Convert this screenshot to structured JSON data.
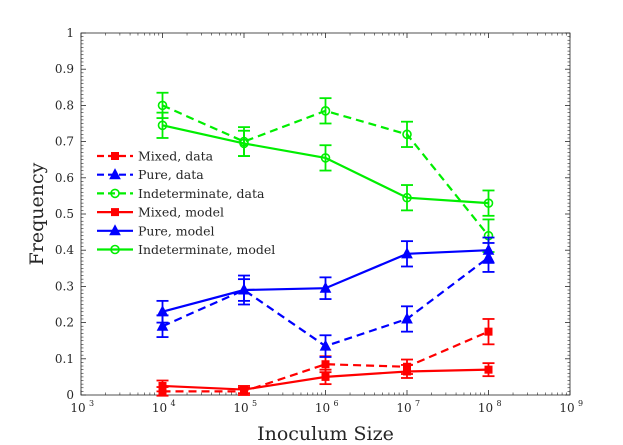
{
  "chart_data": {
    "type": "line",
    "xlabel": "Inoculum Size",
    "ylabel": "Frequency",
    "x_scale": "log10",
    "xlim_exponent": [
      3,
      9
    ],
    "xtick_base": "10",
    "xtick_exponents": [
      "3",
      "4",
      "5",
      "6",
      "7",
      "8",
      "9"
    ],
    "ylim": [
      0,
      1
    ],
    "yticks": [
      "0",
      "0.1",
      "0.2",
      "0.3",
      "0.4",
      "0.5",
      "0.6",
      "0.7",
      "0.8",
      "0.9",
      "1"
    ],
    "x_exponents": [
      4,
      5,
      6,
      7,
      8
    ],
    "legend_position": "left",
    "series": [
      {
        "name": "Mixed, data",
        "color": "#ff0000",
        "style": "dashed",
        "marker": "square",
        "values": [
          0.01,
          0.01,
          0.085,
          0.078,
          0.175
        ],
        "err": [
          0.012,
          0.01,
          0.022,
          0.02,
          0.035
        ]
      },
      {
        "name": "Pure, data",
        "color": "#0000ff",
        "style": "dashed",
        "marker": "triangle",
        "values": [
          0.19,
          0.29,
          0.135,
          0.21,
          0.38
        ],
        "err": [
          0.03,
          0.04,
          0.03,
          0.035,
          0.04
        ]
      },
      {
        "name": "Indeterminate, data",
        "color": "#00ee00",
        "style": "dashed",
        "marker": "circle",
        "values": [
          0.8,
          0.7,
          0.785,
          0.72,
          0.44
        ],
        "err": [
          0.035,
          0.04,
          0.035,
          0.035,
          0.045
        ]
      },
      {
        "name": "Mixed, model",
        "color": "#ff0000",
        "style": "solid",
        "marker": "square",
        "values": [
          0.025,
          0.015,
          0.05,
          0.065,
          0.07
        ],
        "err": [
          0.015,
          0.01,
          0.02,
          0.018,
          0.018
        ]
      },
      {
        "name": "Pure, model",
        "color": "#0000ff",
        "style": "solid",
        "marker": "triangle",
        "values": [
          0.23,
          0.29,
          0.295,
          0.39,
          0.4
        ],
        "err": [
          0.03,
          0.03,
          0.03,
          0.035,
          0.035
        ]
      },
      {
        "name": "Indeterminate, model",
        "color": "#00ee00",
        "style": "solid",
        "marker": "circle",
        "values": [
          0.745,
          0.695,
          0.655,
          0.545,
          0.53
        ],
        "err": [
          0.035,
          0.035,
          0.035,
          0.035,
          0.035
        ]
      }
    ]
  }
}
